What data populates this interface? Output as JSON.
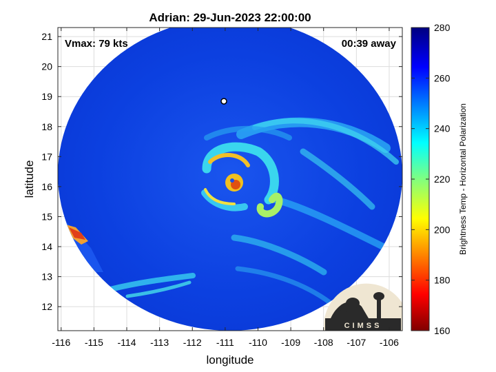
{
  "chart_data": {
    "type": "heatmap",
    "title": "Adrian: 29-Jun-2023 22:00:00",
    "xlabel": "longitude",
    "ylabel": "latitude",
    "xlim": [
      -116.1,
      -105.6
    ],
    "ylim": [
      11.2,
      21.3
    ],
    "xticks": [
      -116,
      -115,
      -114,
      -113,
      -112,
      -111,
      -110,
      -109,
      -108,
      -107,
      -106
    ],
    "yticks": [
      12,
      13,
      14,
      15,
      16,
      17,
      18,
      19,
      20,
      21
    ],
    "grid": true,
    "annotations": {
      "vmax": "Vmax: 79 kts",
      "time_away": "00:39 away"
    },
    "colorbar": {
      "label": "Brightness Temp - Horizontal Polarization",
      "range": [
        160,
        280
      ],
      "ticks": [
        160,
        180,
        200,
        220,
        240,
        260,
        280
      ],
      "colormap": "jet"
    },
    "storm_center": {
      "lon": -110.8,
      "lat": 16.1
    },
    "swath_center": {
      "lon": -110.85,
      "lat": 16.4
    },
    "logo_text": "CIMSS"
  },
  "colors": {
    "background": "#0a3cd8",
    "eye": "#e85010",
    "eyewall": "#f0c020",
    "band": "#30c8f0"
  }
}
